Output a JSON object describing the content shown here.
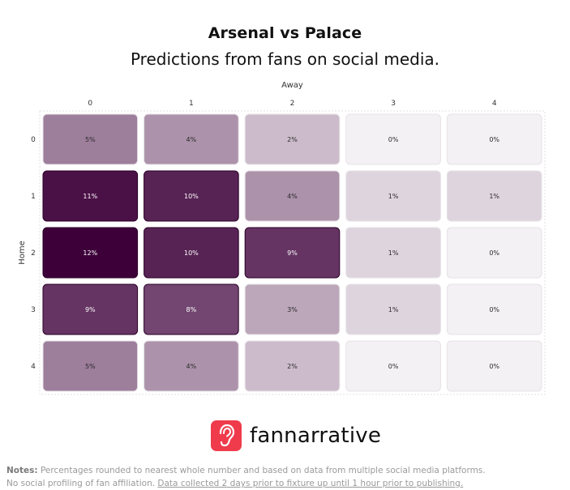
{
  "header": {
    "title": "Arsenal vs Palace",
    "subtitle": "Predictions from fans on social media."
  },
  "chart_data": {
    "type": "heatmap",
    "title": "Arsenal vs Palace",
    "subtitle": "Predictions from fans on social media.",
    "xlabel": "Away",
    "ylabel": "Home",
    "x": [
      "0",
      "1",
      "2",
      "3",
      "4"
    ],
    "y": [
      "0",
      "1",
      "2",
      "3",
      "4"
    ],
    "values": [
      [
        5,
        4,
        2,
        0,
        0
      ],
      [
        11,
        10,
        4,
        1,
        1
      ],
      [
        12,
        10,
        9,
        1,
        0
      ],
      [
        9,
        8,
        3,
        1,
        0
      ],
      [
        5,
        4,
        2,
        0,
        0
      ]
    ],
    "labels": [
      [
        "5%",
        "4%",
        "2%",
        "0%",
        "0%"
      ],
      [
        "11%",
        "10%",
        "4%",
        "1%",
        "1%"
      ],
      [
        "12%",
        "10%",
        "9%",
        "1%",
        "0%"
      ],
      [
        "9%",
        "8%",
        "3%",
        "1%",
        "0%"
      ],
      [
        "5%",
        "4%",
        "2%",
        "0%",
        "0%"
      ]
    ],
    "colors": {
      "high": "#3d0039",
      "low": "#f4f1f4",
      "text": "#ffffff"
    }
  },
  "brand": {
    "name": "fannarrative",
    "logo_icon": "ear-icon",
    "logo_color": "#ef3b4b"
  },
  "notes": {
    "label": "Notes:",
    "line1": "Percentages rounded to nearest whole number and based on data from multiple social media platforms.",
    "line2": "No social profiling of fan affiliation.",
    "line2_link": "Data collected 2 days prior to fixture up until 1 hour prior to publishing."
  }
}
